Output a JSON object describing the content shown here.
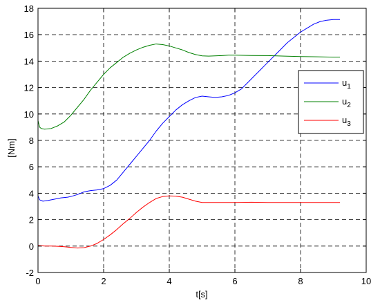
{
  "chart_data": {
    "type": "line",
    "xlabel": "t[s]",
    "ylabel": "[Nm]",
    "xlim": [
      0,
      10
    ],
    "ylim": [
      -2,
      18
    ],
    "xticks": [
      0,
      2,
      4,
      6,
      8,
      10
    ],
    "yticks": [
      -2,
      0,
      2,
      4,
      6,
      8,
      10,
      12,
      14,
      16,
      18
    ],
    "grid": true,
    "legend_position": "right",
    "series": [
      {
        "name": "u",
        "subscript": "1",
        "color": "#0000ff",
        "x": [
          0,
          0.05,
          0.15,
          0.3,
          0.5,
          0.7,
          0.9,
          1.0,
          1.2,
          1.4,
          1.6,
          1.8,
          2.0,
          2.2,
          2.4,
          2.6,
          2.8,
          3.0,
          3.2,
          3.4,
          3.6,
          3.8,
          4.0,
          4.2,
          4.4,
          4.6,
          4.8,
          5.0,
          5.2,
          5.4,
          5.6,
          5.8,
          6.0,
          6.2,
          6.4,
          6.6,
          6.8,
          7.0,
          7.2,
          7.4,
          7.6,
          7.8,
          8.0,
          8.2,
          8.4,
          8.6,
          8.8,
          9.0,
          9.2
        ],
        "values": [
          3.8,
          3.5,
          3.4,
          3.45,
          3.55,
          3.65,
          3.7,
          3.75,
          3.9,
          4.1,
          4.2,
          4.25,
          4.35,
          4.6,
          5.0,
          5.6,
          6.2,
          6.8,
          7.4,
          8.0,
          8.7,
          9.3,
          9.8,
          10.3,
          10.7,
          11.0,
          11.25,
          11.35,
          11.3,
          11.25,
          11.3,
          11.4,
          11.6,
          11.9,
          12.4,
          12.9,
          13.4,
          13.9,
          14.4,
          14.9,
          15.4,
          15.8,
          16.2,
          16.5,
          16.8,
          17.0,
          17.1,
          17.15,
          17.15
        ]
      },
      {
        "name": "u",
        "subscript": "2",
        "color": "#008000",
        "x": [
          0,
          0.05,
          0.1,
          0.2,
          0.4,
          0.6,
          0.8,
          1.0,
          1.2,
          1.4,
          1.6,
          1.8,
          2.0,
          2.2,
          2.4,
          2.6,
          2.8,
          3.0,
          3.2,
          3.4,
          3.6,
          3.8,
          4.0,
          4.2,
          4.4,
          4.6,
          4.8,
          5.0,
          5.2,
          5.4,
          5.6,
          5.8,
          6.0,
          6.5,
          7.0,
          7.5,
          8.0,
          8.5,
          9.0,
          9.2
        ],
        "values": [
          9.5,
          9.0,
          8.9,
          8.85,
          8.9,
          9.1,
          9.4,
          9.9,
          10.5,
          11.1,
          11.8,
          12.4,
          13.0,
          13.5,
          13.9,
          14.3,
          14.6,
          14.85,
          15.05,
          15.2,
          15.3,
          15.25,
          15.15,
          15.0,
          14.85,
          14.65,
          14.5,
          14.4,
          14.38,
          14.4,
          14.42,
          14.45,
          14.45,
          14.43,
          14.42,
          14.38,
          14.35,
          14.33,
          14.3,
          14.3
        ]
      },
      {
        "name": "u",
        "subscript": "3",
        "color": "#ff0000",
        "x": [
          0,
          0.2,
          0.4,
          0.6,
          0.8,
          1.0,
          1.2,
          1.4,
          1.6,
          1.8,
          2.0,
          2.2,
          2.4,
          2.6,
          2.8,
          3.0,
          3.2,
          3.4,
          3.6,
          3.8,
          4.0,
          4.2,
          4.4,
          4.6,
          4.8,
          5.0,
          5.2,
          5.5,
          6.0,
          6.5,
          7.0,
          7.5,
          8.0,
          8.5,
          9.0,
          9.2
        ],
        "values": [
          0.05,
          0.0,
          0.0,
          -0.02,
          -0.05,
          -0.1,
          -0.15,
          -0.12,
          0.0,
          0.2,
          0.5,
          0.85,
          1.25,
          1.7,
          2.1,
          2.55,
          2.95,
          3.3,
          3.6,
          3.75,
          3.8,
          3.78,
          3.7,
          3.55,
          3.4,
          3.3,
          3.3,
          3.3,
          3.3,
          3.32,
          3.3,
          3.3,
          3.3,
          3.3,
          3.3,
          3.3
        ]
      }
    ]
  }
}
